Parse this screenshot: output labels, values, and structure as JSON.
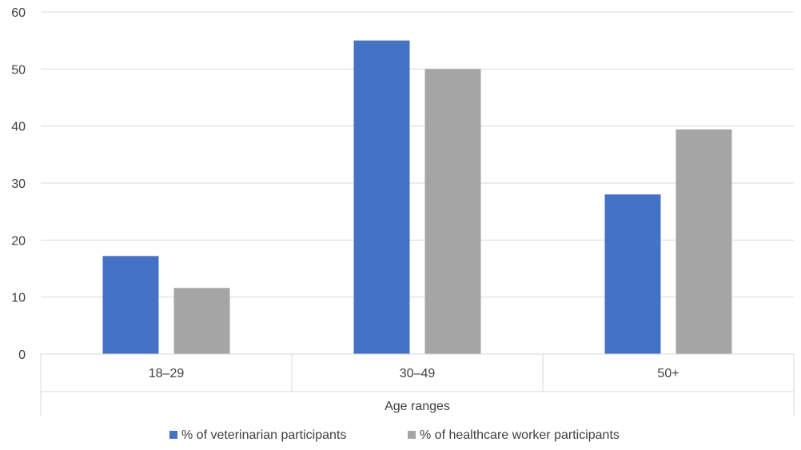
{
  "chart_data": {
    "type": "bar",
    "title": "",
    "xlabel": "Age ranges",
    "ylabel": "",
    "categories": [
      "18–29",
      "30–49",
      "50+"
    ],
    "ylim": [
      0,
      60
    ],
    "yticks": [
      "0",
      "10",
      "20",
      "30",
      "40",
      "50",
      "60"
    ],
    "grid": true,
    "legend_position": "bottom",
    "series": [
      {
        "name": "% of veterinarian participants",
        "values": [
          17.2,
          55.0,
          28.0
        ],
        "color": "#4472C4"
      },
      {
        "name": "% of healthcare worker participants",
        "values": [
          11.6,
          50.0,
          39.4
        ],
        "color": "#A5A5A5"
      }
    ]
  }
}
